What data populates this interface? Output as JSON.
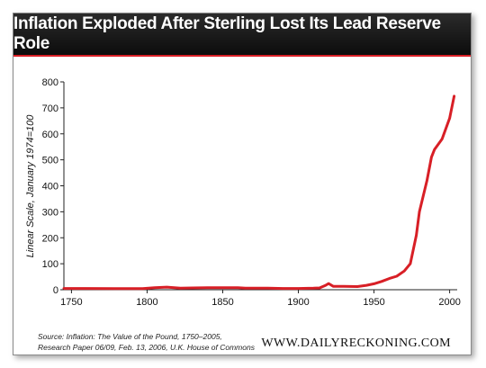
{
  "header": {
    "title": "Inflation Exploded After Sterling Lost Its Lead Reserve Role"
  },
  "footer": {
    "source_line1": "Source: Inflation: The Value of the Pound, 1750–2005,",
    "source_line2": "Research Paper 06/09, Feb. 13, 2006, U.K. House of Commons",
    "brand": "WWW.DAILYRECKONING.COM"
  },
  "colors": {
    "line": "#d81f26",
    "title_bar": "#111111",
    "grid": "#cccccc"
  },
  "chart_data": {
    "type": "line",
    "title": "Inflation Exploded After Sterling Lost Its Lead Reserve Role",
    "xlabel": "",
    "ylabel": "Linear Scale, January 1974=100",
    "xlim": [
      1745,
      2005
    ],
    "ylim": [
      0,
      800
    ],
    "xticks": [
      1750,
      1800,
      1850,
      1900,
      1950,
      2000
    ],
    "yticks": [
      0,
      100,
      200,
      300,
      400,
      500,
      600,
      700,
      800
    ],
    "grid": false,
    "series": [
      {
        "name": "",
        "x": [
          1745,
          1760,
          1780,
          1797,
          1805,
          1813,
          1822,
          1830,
          1840,
          1860,
          1865,
          1880,
          1890,
          1900,
          1910,
          1914,
          1918,
          1920,
          1923,
          1930,
          1939,
          1945,
          1950,
          1955,
          1960,
          1965,
          1970,
          1974,
          1978,
          1980,
          1985,
          1988,
          1990,
          1995,
          2000,
          2003
        ],
        "y": [
          5,
          5,
          4,
          4,
          8,
          10,
          6,
          7,
          8,
          8,
          6,
          6,
          5,
          5,
          6,
          7,
          17,
          24,
          13,
          13,
          12,
          17,
          23,
          32,
          43,
          52,
          72,
          100,
          210,
          300,
          420,
          510,
          540,
          580,
          660,
          745
        ]
      }
    ]
  }
}
